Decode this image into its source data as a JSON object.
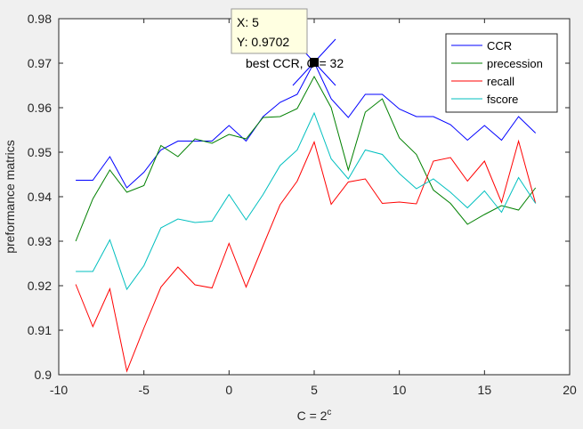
{
  "chart_data": {
    "type": "line",
    "xlabel_base": "C = 2",
    "xlabel_sup": "c",
    "ylabel": "preformance matrics",
    "xlim": [
      -10,
      20
    ],
    "ylim": [
      0.9,
      0.98
    ],
    "xticks": [
      -10,
      -5,
      0,
      5,
      10,
      15,
      20
    ],
    "xtick_labels": [
      "-10",
      "-5",
      "0",
      "5",
      "10",
      "15",
      "20"
    ],
    "yticks": [
      0.9,
      0.91,
      0.92,
      0.93,
      0.94,
      0.95,
      0.96,
      0.97,
      0.98
    ],
    "ytick_labels": [
      "0.9",
      "0.91",
      "0.92",
      "0.93",
      "0.94",
      "0.95",
      "0.96",
      "0.97",
      "0.98"
    ],
    "grid": false,
    "legend_position": "top-right",
    "x": [
      -9,
      -8,
      -7,
      -6,
      -5,
      -4,
      -3,
      -2,
      -1,
      0,
      1,
      2,
      3,
      4,
      5,
      6,
      7,
      8,
      9,
      10,
      11,
      12,
      13,
      14,
      15,
      16,
      17,
      18
    ],
    "series": [
      {
        "name": "CCR",
        "color": "#0000ff",
        "values": [
          0.9437,
          0.9437,
          0.949,
          0.942,
          0.9455,
          0.9505,
          0.9525,
          0.9525,
          0.9525,
          0.956,
          0.9525,
          0.958,
          0.9612,
          0.963,
          0.9702,
          0.962,
          0.9578,
          0.963,
          0.963,
          0.9597,
          0.958,
          0.958,
          0.9562,
          0.9527,
          0.956,
          0.9527,
          0.958,
          0.9543
        ]
      },
      {
        "name": "precession",
        "color": "#008000",
        "values": [
          0.93,
          0.9395,
          0.946,
          0.941,
          0.9425,
          0.9515,
          0.949,
          0.953,
          0.952,
          0.954,
          0.953,
          0.9578,
          0.958,
          0.9598,
          0.967,
          0.96,
          0.946,
          0.959,
          0.962,
          0.9532,
          0.9495,
          0.9415,
          0.9385,
          0.9338,
          0.936,
          0.938,
          0.937,
          0.942
        ]
      },
      {
        "name": "recall",
        "color": "#ff0000",
        "values": [
          0.9203,
          0.9108,
          0.9193,
          0.9008,
          0.9105,
          0.9197,
          0.9242,
          0.9202,
          0.9195,
          0.9295,
          0.9197,
          0.929,
          0.9382,
          0.9435,
          0.9523,
          0.9383,
          0.9433,
          0.944,
          0.9385,
          0.9388,
          0.9384,
          0.948,
          0.9488,
          0.9435,
          0.948,
          0.9387,
          0.9525,
          0.9385
        ]
      },
      {
        "name": "fscore",
        "color": "#00bfbf",
        "values": [
          0.9232,
          0.9232,
          0.9303,
          0.9192,
          0.9245,
          0.933,
          0.935,
          0.9342,
          0.9345,
          0.9405,
          0.9348,
          0.9405,
          0.947,
          0.9505,
          0.9588,
          0.9485,
          0.944,
          0.9505,
          0.9495,
          0.9452,
          0.9418,
          0.944,
          0.941,
          0.9375,
          0.9413,
          0.9365,
          0.9443,
          0.9385
        ]
      }
    ],
    "annotations": {
      "datatip": {
        "x": 5,
        "y": 0.9702,
        "line1": "X: 5",
        "line2": "Y: 0.9702"
      },
      "label": "best CCR, C = 32"
    }
  }
}
